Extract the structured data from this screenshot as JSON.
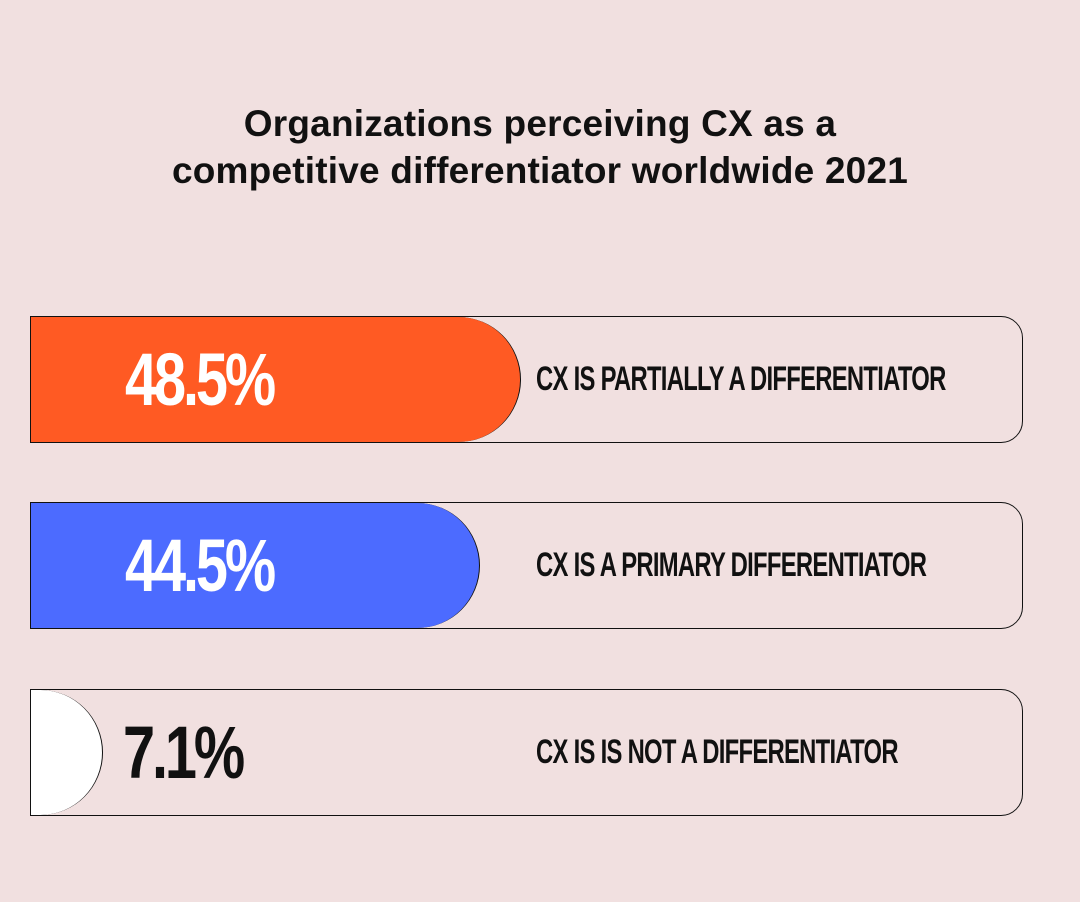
{
  "title_lines": [
    "Organizations perceiving CX as a",
    "competitive differentiator worldwide 2021"
  ],
  "chart_data": {
    "type": "bar",
    "title": "Organizations perceiving CX as a competitive differentiator worldwide 2021",
    "categories": [
      "CX IS PARTIALLY A DIFFERENTIATOR",
      "CX IS A PRIMARY DIFFERENTIATOR",
      "CX IS IS NOT A DIFFERENTIATOR"
    ],
    "values": [
      48.5,
      44.5,
      7.1
    ],
    "value_labels": [
      "48.5%",
      "44.5%",
      "7.1%"
    ],
    "unit": "%",
    "orientation": "horizontal",
    "colors": [
      "#ff5a23",
      "#4c6bff",
      "#ffffff"
    ],
    "value_text_colors": [
      "#ffffff",
      "#ffffff",
      "#111111"
    ],
    "background": "#f1e0e0"
  }
}
